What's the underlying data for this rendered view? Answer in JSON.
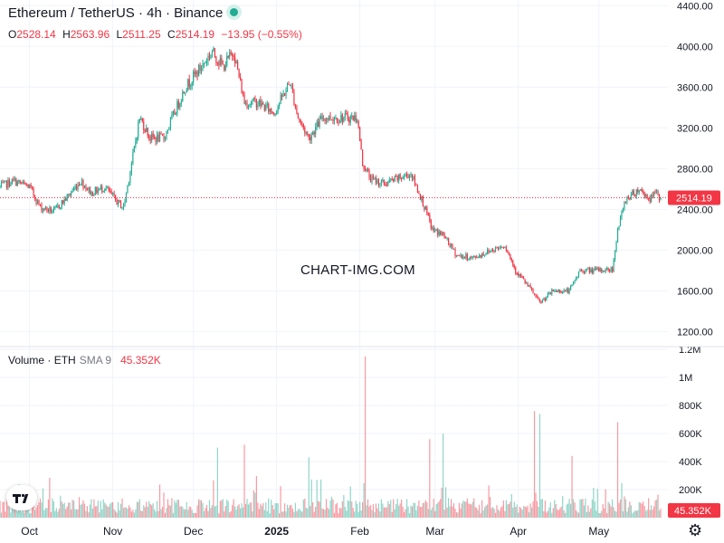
{
  "header": {
    "symbol": "Ethereum / TetherUS · 4h · Binance",
    "open_label": "O",
    "open": "2528.14",
    "high_label": "H",
    "high": "2563.96",
    "low_label": "L",
    "low": "2511.25",
    "close_label": "C",
    "close": "2514.19",
    "change": "−13.95 (−0.55%)"
  },
  "volume_legend": {
    "label": "Volume · ETH",
    "indicator": "SMA 9",
    "value": "45.352K"
  },
  "watermark": "CHART-IMG.COM",
  "last_price_tag": "2514.19",
  "last_volume_tag": "45.352K",
  "icons": {
    "logo": "tradingview-logo-icon",
    "settings": "gear-icon"
  },
  "colors": {
    "up": "#22ab94",
    "down": "#f23645",
    "grid": "#f0f3fa",
    "text": "#131722"
  },
  "chart_data": {
    "type": "candlestick",
    "price_axis": {
      "ticks": [
        1200,
        1600,
        2000,
        2400,
        2800,
        3200,
        3600,
        4000,
        4400
      ],
      "tick_labels": [
        "1200.00",
        "1600.00",
        "2000.00",
        "2400.00",
        "2800.00",
        "3200.00",
        "3600.00",
        "4000.00",
        "4400.00"
      ],
      "ylim": [
        1150,
        4420
      ]
    },
    "volume_axis": {
      "ticks": [
        200000,
        400000,
        600000,
        800000,
        1000000,
        1200000
      ],
      "tick_labels": [
        "200K",
        "400K",
        "600K",
        "800K",
        "1M",
        "1.2M"
      ],
      "ylim": [
        0,
        1200000
      ]
    },
    "time_axis": {
      "labels": [
        "Oct",
        "Nov",
        "Dec",
        "2025",
        "Feb",
        "Mar",
        "Apr",
        "May"
      ],
      "dates": [
        "2024-10-01",
        "2024-11-01",
        "2024-12-01",
        "2025-01-01",
        "2025-02-01",
        "2025-03-01",
        "2025-04-01",
        "2025-05-01"
      ],
      "range": [
        "2024-09-20",
        "2025-05-24"
      ]
    },
    "price_path": [
      [
        "2024-09-20",
        2620
      ],
      [
        "2024-09-25",
        2680
      ],
      [
        "2024-10-01",
        2620
      ],
      [
        "2024-10-05",
        2420
      ],
      [
        "2024-10-10",
        2380
      ],
      [
        "2024-10-15",
        2520
      ],
      [
        "2024-10-20",
        2680
      ],
      [
        "2024-10-24",
        2560
      ],
      [
        "2024-10-29",
        2620
      ],
      [
        "2024-11-03",
        2460
      ],
      [
        "2024-11-05",
        2420
      ],
      [
        "2024-11-08",
        2850
      ],
      [
        "2024-11-11",
        3300
      ],
      [
        "2024-11-15",
        3100
      ],
      [
        "2024-11-20",
        3100
      ],
      [
        "2024-11-24",
        3350
      ],
      [
        "2024-11-28",
        3600
      ],
      [
        "2024-12-04",
        3800
      ],
      [
        "2024-12-08",
        3950
      ],
      [
        "2024-12-12",
        3800
      ],
      [
        "2024-12-16",
        3950
      ],
      [
        "2024-12-20",
        3450
      ],
      [
        "2024-12-25",
        3450
      ],
      [
        "2024-12-31",
        3350
      ],
      [
        "2025-01-06",
        3650
      ],
      [
        "2025-01-09",
        3300
      ],
      [
        "2025-01-13",
        3100
      ],
      [
        "2025-01-18",
        3300
      ],
      [
        "2025-01-25",
        3300
      ],
      [
        "2025-01-31",
        3300
      ],
      [
        "2025-02-02",
        2850
      ],
      [
        "2025-02-05",
        2700
      ],
      [
        "2025-02-10",
        2650
      ],
      [
        "2025-02-15",
        2700
      ],
      [
        "2025-02-20",
        2750
      ],
      [
        "2025-02-24",
        2500
      ],
      [
        "2025-02-28",
        2200
      ],
      [
        "2025-03-04",
        2150
      ],
      [
        "2025-03-09",
        1950
      ],
      [
        "2025-03-15",
        1920
      ],
      [
        "2025-03-22",
        2000
      ],
      [
        "2025-03-27",
        2050
      ],
      [
        "2025-03-31",
        1800
      ],
      [
        "2025-04-06",
        1600
      ],
      [
        "2025-04-09",
        1480
      ],
      [
        "2025-04-14",
        1600
      ],
      [
        "2025-04-20",
        1600
      ],
      [
        "2025-04-24",
        1800
      ],
      [
        "2025-04-30",
        1800
      ],
      [
        "2025-05-06",
        1810
      ],
      [
        "2025-05-08",
        2200
      ],
      [
        "2025-05-11",
        2500
      ],
      [
        "2025-05-16",
        2600
      ],
      [
        "2025-05-20",
        2500
      ],
      [
        "2025-05-22",
        2560
      ],
      [
        "2025-05-24",
        2514
      ]
    ],
    "volume_spikes": [
      [
        "2025-02-03",
        1150000
      ],
      [
        "2025-03-04",
        600000
      ],
      [
        "2025-04-07",
        760000
      ],
      [
        "2025-04-09",
        740000
      ],
      [
        "2025-05-08",
        680000
      ],
      [
        "2025-02-27",
        560000
      ],
      [
        "2024-12-10",
        500000
      ],
      [
        "2024-12-20",
        520000
      ],
      [
        "2025-01-13",
        430000
      ],
      [
        "2025-04-21",
        440000
      ]
    ],
    "last_close": 2514.19,
    "last_volume": 45352
  }
}
